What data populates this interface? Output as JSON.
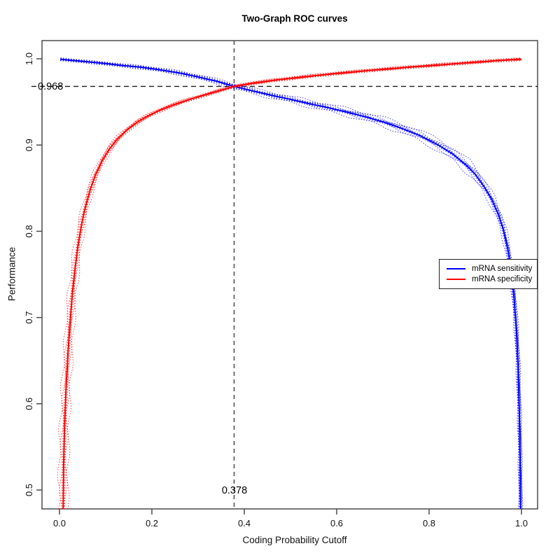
{
  "title": "Two-Graph ROC curves",
  "axes": {
    "x": {
      "label": "Coding Probability Cutoff",
      "ticks": [
        "0.0",
        "0.2",
        "0.4",
        "0.6",
        "0.8",
        "1.0"
      ]
    },
    "y": {
      "label": "Performance",
      "ticks": [
        "0.5",
        "0.6",
        "0.7",
        "0.8",
        "0.9",
        "1.0"
      ]
    }
  },
  "annotations": {
    "hline": {
      "value": 0.968,
      "label": "0.968"
    },
    "vline": {
      "value": 0.378,
      "label": "0.378"
    }
  },
  "legend": {
    "items": [
      {
        "label": "mRNA sensitivity",
        "color": "#0000ff"
      },
      {
        "label": "mRNA specificity",
        "color": "#ff0000"
      }
    ]
  },
  "chart_data": {
    "type": "line",
    "title": "Two-Graph ROC curves",
    "xlabel": "Coding Probability Cutoff",
    "ylabel": "Performance",
    "xlim": [
      0.0,
      1.0
    ],
    "ylim": [
      0.5,
      1.0
    ],
    "grid": false,
    "legend_position": "right-middle",
    "crossover": {
      "cutoff": 0.378,
      "performance": 0.968
    },
    "confidence_bands": true,
    "series": [
      {
        "name": "mRNA sensitivity",
        "color": "#0000ff",
        "points": [
          [
            0.002,
            0.9995
          ],
          [
            0.03,
            0.998
          ],
          [
            0.06,
            0.9965
          ],
          [
            0.1,
            0.9945
          ],
          [
            0.14,
            0.992
          ],
          [
            0.18,
            0.99
          ],
          [
            0.22,
            0.987
          ],
          [
            0.26,
            0.9835
          ],
          [
            0.3,
            0.979
          ],
          [
            0.34,
            0.974
          ],
          [
            0.378,
            0.968
          ],
          [
            0.42,
            0.9625
          ],
          [
            0.46,
            0.9575
          ],
          [
            0.5,
            0.953
          ],
          [
            0.54,
            0.948
          ],
          [
            0.58,
            0.9435
          ],
          [
            0.62,
            0.9385
          ],
          [
            0.66,
            0.933
          ],
          [
            0.7,
            0.927
          ],
          [
            0.74,
            0.9195
          ],
          [
            0.78,
            0.911
          ],
          [
            0.82,
            0.9
          ],
          [
            0.85,
            0.89
          ],
          [
            0.88,
            0.877
          ],
          [
            0.9,
            0.866
          ],
          [
            0.92,
            0.851
          ],
          [
            0.935,
            0.8375
          ],
          [
            0.95,
            0.8195
          ],
          [
            0.96,
            0.8035
          ],
          [
            0.97,
            0.78
          ],
          [
            0.978,
            0.754
          ],
          [
            0.984,
            0.722
          ],
          [
            0.989,
            0.685
          ],
          [
            0.9925,
            0.645
          ],
          [
            0.995,
            0.597
          ],
          [
            0.9965,
            0.555
          ],
          [
            0.9975,
            0.515
          ],
          [
            0.998,
            0.478
          ]
        ]
      },
      {
        "name": "mRNA specificity",
        "color": "#ff0000",
        "points": [
          [
            0.008,
            0.478
          ],
          [
            0.009,
            0.53
          ],
          [
            0.011,
            0.575
          ],
          [
            0.014,
            0.615
          ],
          [
            0.018,
            0.655
          ],
          [
            0.023,
            0.695
          ],
          [
            0.028,
            0.7285
          ],
          [
            0.034,
            0.758
          ],
          [
            0.04,
            0.7835
          ],
          [
            0.048,
            0.8085
          ],
          [
            0.056,
            0.828
          ],
          [
            0.066,
            0.8475
          ],
          [
            0.078,
            0.8655
          ],
          [
            0.092,
            0.8815
          ],
          [
            0.108,
            0.8955
          ],
          [
            0.126,
            0.9075
          ],
          [
            0.146,
            0.9175
          ],
          [
            0.168,
            0.9265
          ],
          [
            0.192,
            0.934
          ],
          [
            0.218,
            0.9405
          ],
          [
            0.246,
            0.9465
          ],
          [
            0.276,
            0.952
          ],
          [
            0.308,
            0.957
          ],
          [
            0.342,
            0.9625
          ],
          [
            0.378,
            0.968
          ],
          [
            0.42,
            0.9718
          ],
          [
            0.46,
            0.9748
          ],
          [
            0.5,
            0.9773
          ],
          [
            0.55,
            0.9803
          ],
          [
            0.6,
            0.983
          ],
          [
            0.65,
            0.9855
          ],
          [
            0.7,
            0.9878
          ],
          [
            0.75,
            0.99
          ],
          [
            0.8,
            0.992
          ],
          [
            0.85,
            0.994
          ],
          [
            0.9,
            0.996
          ],
          [
            0.95,
            0.998
          ],
          [
            1.0,
            0.9995
          ]
        ]
      }
    ]
  }
}
